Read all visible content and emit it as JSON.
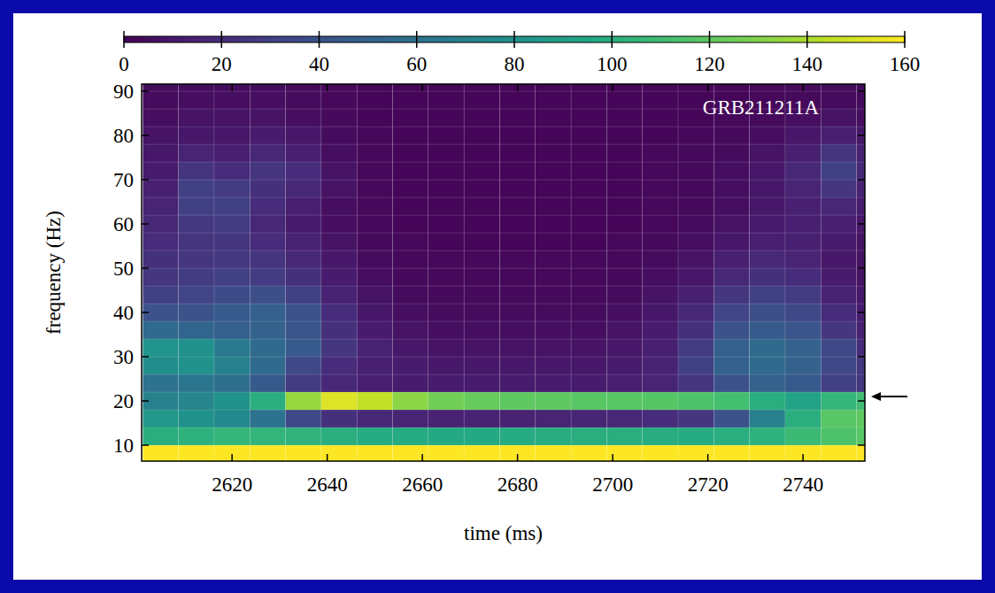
{
  "chart_data": {
    "type": "heatmap",
    "annotations": [
      "GRB211211A"
    ],
    "x_label": "time (ms)",
    "y_label": "frequency (Hz)",
    "xlim": [
      2601,
      2753
    ],
    "xticks": [
      2620,
      2640,
      2660,
      2680,
      2700,
      2720,
      2740
    ],
    "ylim": [
      6.4,
      91.6
    ],
    "yticks": [
      10,
      20,
      30,
      40,
      50,
      60,
      70,
      80,
      90
    ],
    "zlim": [
      0,
      160
    ],
    "zticks": [
      0,
      20,
      40,
      60,
      80,
      100,
      120,
      140,
      160
    ],
    "arrow_frequency": 21,
    "grid": false,
    "x": [
      2605,
      2612.5,
      2620,
      2627.5,
      2635,
      2642.5,
      2650,
      2657.5,
      2665,
      2672.5,
      2680,
      2687.5,
      2695,
      2702.5,
      2710,
      2717.5,
      2725,
      2732.5,
      2740,
      2747.5,
      2755
    ],
    "y": [
      8,
      12,
      16,
      20,
      24,
      28,
      32,
      36,
      40,
      44,
      48,
      52,
      56,
      60,
      64,
      68,
      72,
      76,
      80,
      84,
      88,
      92
    ],
    "z": [
      [
        160,
        160,
        160,
        160,
        160,
        160,
        160,
        160,
        160,
        160,
        160,
        160,
        160,
        160,
        160,
        160,
        160,
        160,
        160,
        160,
        160
      ],
      [
        100,
        102,
        105,
        104,
        103,
        100,
        98,
        98,
        97,
        97,
        98,
        99,
        100,
        100,
        99,
        98,
        100,
        102,
        108,
        115,
        118
      ],
      [
        85,
        80,
        75,
        60,
        35,
        22,
        18,
        16,
        15,
        15,
        15,
        16,
        17,
        18,
        20,
        25,
        40,
        70,
        100,
        118,
        120
      ],
      [
        70,
        72,
        80,
        100,
        135,
        152,
        145,
        132,
        125,
        122,
        120,
        120,
        118,
        118,
        117,
        115,
        112,
        100,
        92,
        105,
        110
      ],
      [
        60,
        62,
        58,
        45,
        28,
        18,
        14,
        12,
        12,
        12,
        12,
        12,
        12,
        14,
        16,
        25,
        40,
        50,
        45,
        30,
        25
      ],
      [
        78,
        80,
        70,
        55,
        35,
        20,
        14,
        12,
        10,
        10,
        10,
        10,
        10,
        12,
        15,
        30,
        50,
        55,
        50,
        35,
        25
      ],
      [
        82,
        80,
        65,
        55,
        45,
        25,
        15,
        10,
        8,
        8,
        8,
        8,
        8,
        10,
        14,
        28,
        48,
        55,
        50,
        35,
        20
      ],
      [
        55,
        52,
        48,
        50,
        42,
        22,
        12,
        8,
        6,
        6,
        6,
        6,
        6,
        8,
        12,
        22,
        40,
        45,
        42,
        25,
        15
      ],
      [
        40,
        40,
        45,
        48,
        40,
        20,
        10,
        6,
        5,
        5,
        5,
        5,
        5,
        6,
        10,
        18,
        32,
        38,
        35,
        20,
        12
      ],
      [
        30,
        32,
        36,
        38,
        30,
        15,
        8,
        5,
        4,
        4,
        4,
        4,
        4,
        5,
        8,
        14,
        25,
        30,
        28,
        15,
        10
      ],
      [
        25,
        28,
        30,
        28,
        22,
        12,
        6,
        4,
        3,
        3,
        3,
        3,
        3,
        4,
        6,
        10,
        18,
        22,
        20,
        12,
        8
      ],
      [
        22,
        25,
        26,
        24,
        18,
        10,
        5,
        3,
        3,
        3,
        3,
        3,
        3,
        3,
        5,
        8,
        14,
        18,
        16,
        10,
        8
      ],
      [
        20,
        24,
        25,
        20,
        15,
        8,
        4,
        3,
        2,
        2,
        2,
        2,
        2,
        3,
        4,
        6,
        10,
        14,
        14,
        12,
        8
      ],
      [
        18,
        26,
        28,
        18,
        12,
        6,
        3,
        2,
        2,
        2,
        2,
        2,
        2,
        2,
        3,
        5,
        8,
        12,
        14,
        14,
        10
      ],
      [
        16,
        30,
        30,
        20,
        14,
        6,
        3,
        2,
        2,
        2,
        2,
        2,
        2,
        2,
        3,
        4,
        6,
        10,
        14,
        18,
        12
      ],
      [
        14,
        30,
        28,
        22,
        18,
        8,
        3,
        2,
        2,
        2,
        2,
        2,
        2,
        2,
        3,
        4,
        6,
        10,
        16,
        25,
        15
      ],
      [
        12,
        24,
        20,
        24,
        20,
        8,
        3,
        2,
        2,
        2,
        2,
        2,
        2,
        2,
        3,
        4,
        6,
        10,
        18,
        30,
        18
      ],
      [
        10,
        16,
        14,
        18,
        14,
        6,
        3,
        2,
        2,
        2,
        2,
        2,
        2,
        2,
        3,
        4,
        5,
        8,
        14,
        24,
        15
      ],
      [
        8,
        10,
        10,
        12,
        10,
        5,
        3,
        2,
        2,
        2,
        2,
        2,
        2,
        2,
        2,
        3,
        4,
        6,
        10,
        14,
        10
      ],
      [
        6,
        8,
        8,
        8,
        6,
        4,
        2,
        2,
        2,
        2,
        2,
        2,
        2,
        2,
        2,
        2,
        3,
        4,
        6,
        8,
        6
      ],
      [
        5,
        6,
        6,
        6,
        5,
        3,
        2,
        2,
        2,
        2,
        2,
        2,
        2,
        2,
        2,
        2,
        2,
        3,
        4,
        5,
        5
      ],
      [
        5,
        5,
        5,
        5,
        4,
        3,
        2,
        2,
        2,
        2,
        2,
        2,
        2,
        2,
        2,
        2,
        2,
        3,
        4,
        5,
        5
      ]
    ]
  }
}
